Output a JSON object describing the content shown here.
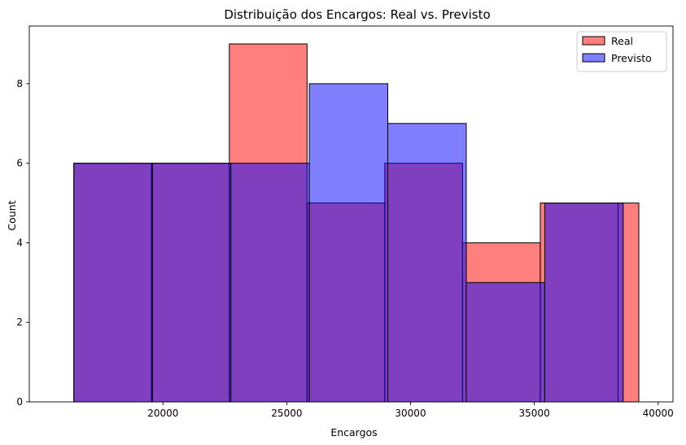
{
  "chart_data": {
    "type": "bar",
    "title": "Distribuição dos Encargos: Real vs. Previsto",
    "xlabel": "Encargos",
    "ylabel": "Count",
    "xlim": [
      14600,
      40600
    ],
    "ylim": [
      0,
      9.45
    ],
    "xticks": [
      20000,
      25000,
      30000,
      35000,
      40000
    ],
    "yticks": [
      0,
      2,
      4,
      6,
      8
    ],
    "grid": false,
    "legend_position": "top-right",
    "series": [
      {
        "name": "Real",
        "color": "#ff0000",
        "alpha": 0.5,
        "bins": [
          {
            "x0": 16400,
            "x1": 19540,
            "count": 6
          },
          {
            "x0": 19540,
            "x1": 22680,
            "count": 6
          },
          {
            "x0": 22680,
            "x1": 25820,
            "count": 9
          },
          {
            "x0": 25820,
            "x1": 28960,
            "count": 5
          },
          {
            "x0": 28960,
            "x1": 32100,
            "count": 6
          },
          {
            "x0": 32100,
            "x1": 35240,
            "count": 4
          },
          {
            "x0": 35240,
            "x1": 38380,
            "count": 5
          },
          {
            "x0": 38380,
            "x1": 39220,
            "count": 5
          }
        ]
      },
      {
        "name": "Previsto",
        "color": "#0000ff",
        "alpha": 0.5,
        "bins": [
          {
            "x0": 16400,
            "x1": 19570,
            "count": 6
          },
          {
            "x0": 19570,
            "x1": 22740,
            "count": 6
          },
          {
            "x0": 22740,
            "x1": 25910,
            "count": 6
          },
          {
            "x0": 25910,
            "x1": 29080,
            "count": 8
          },
          {
            "x0": 29080,
            "x1": 32250,
            "count": 7
          },
          {
            "x0": 32250,
            "x1": 35420,
            "count": 3
          },
          {
            "x0": 35420,
            "x1": 38590,
            "count": 5
          }
        ]
      }
    ]
  }
}
